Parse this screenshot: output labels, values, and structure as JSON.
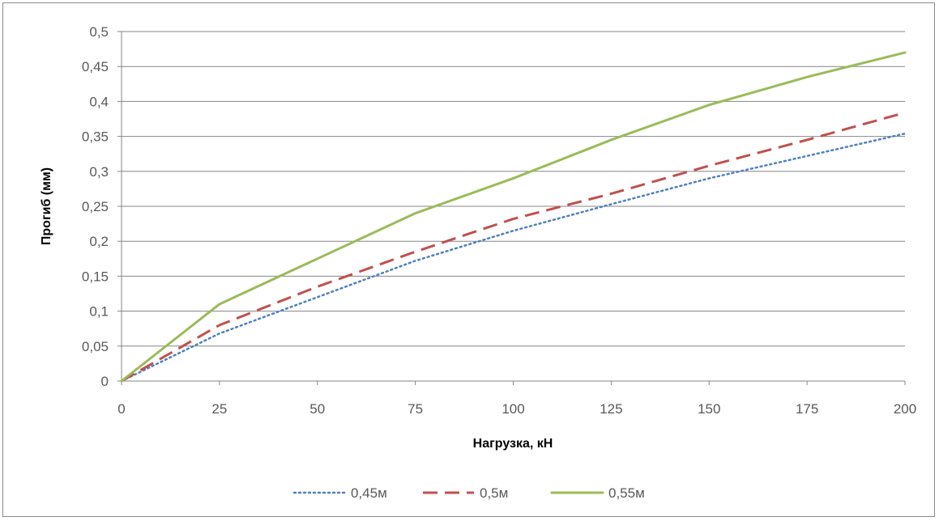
{
  "chart_data": {
    "type": "line",
    "xlabel": "Нагрузка, кН",
    "ylabel": "Прогиб (мм)",
    "x": [
      0,
      25,
      50,
      75,
      100,
      125,
      150,
      175,
      200
    ],
    "xticks": [
      "0",
      "25",
      "50",
      "75",
      "100",
      "125",
      "150",
      "175",
      "200"
    ],
    "yticks": [
      "0",
      "0,05",
      "0,1",
      "0,15",
      "0,2",
      "0,25",
      "0,3",
      "0,35",
      "0,4",
      "0,45",
      "0,5"
    ],
    "xlim": [
      0,
      200
    ],
    "ylim": [
      0,
      0.5
    ],
    "grid": "horizontal",
    "legend_position": "bottom",
    "series": [
      {
        "name": "0,45м",
        "color": "#4f81bd",
        "style": "dotted",
        "values": [
          0,
          0.068,
          0.12,
          0.172,
          0.215,
          0.253,
          0.29,
          0.322,
          0.354
        ]
      },
      {
        "name": "0,5м",
        "color": "#c0504d",
        "style": "dashed",
        "values": [
          0,
          0.08,
          0.135,
          0.185,
          0.232,
          0.268,
          0.308,
          0.345,
          0.384
        ]
      },
      {
        "name": "0,55м",
        "color": "#9bbb59",
        "style": "solid",
        "values": [
          0,
          0.11,
          0.175,
          0.24,
          0.29,
          0.345,
          0.395,
          0.435,
          0.47
        ]
      }
    ]
  }
}
